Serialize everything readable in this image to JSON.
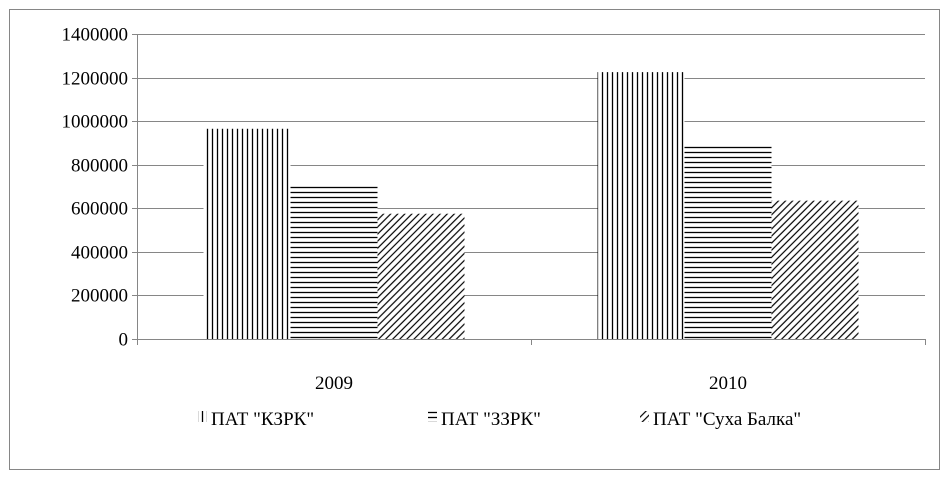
{
  "chart_data": {
    "type": "bar",
    "title": "",
    "xlabel": "",
    "ylabel": "",
    "categories": [
      "2009",
      "2010"
    ],
    "series": [
      {
        "name": "ПАТ \"КЗРК\"",
        "values": [
          965000,
          1225000
        ],
        "pattern": "vertical-lines"
      },
      {
        "name": "ПАТ \"ЗЗРК\"",
        "values": [
          710000,
          895000
        ],
        "pattern": "horizontal-lines"
      },
      {
        "name": "ПАТ \"Суха Балка\"",
        "values": [
          575000,
          635000
        ],
        "pattern": "diagonal-lines"
      }
    ],
    "ylim": [
      0,
      1400000
    ],
    "yticks": [
      "0",
      "200000",
      "400000",
      "600000",
      "800000",
      "1000000",
      "1200000",
      "1400000"
    ],
    "grid": true,
    "legend_position": "bottom",
    "colors": {
      "bar_line": "#000000",
      "grid": "#868686",
      "frame": "#868686",
      "background": "#ffffff"
    }
  }
}
